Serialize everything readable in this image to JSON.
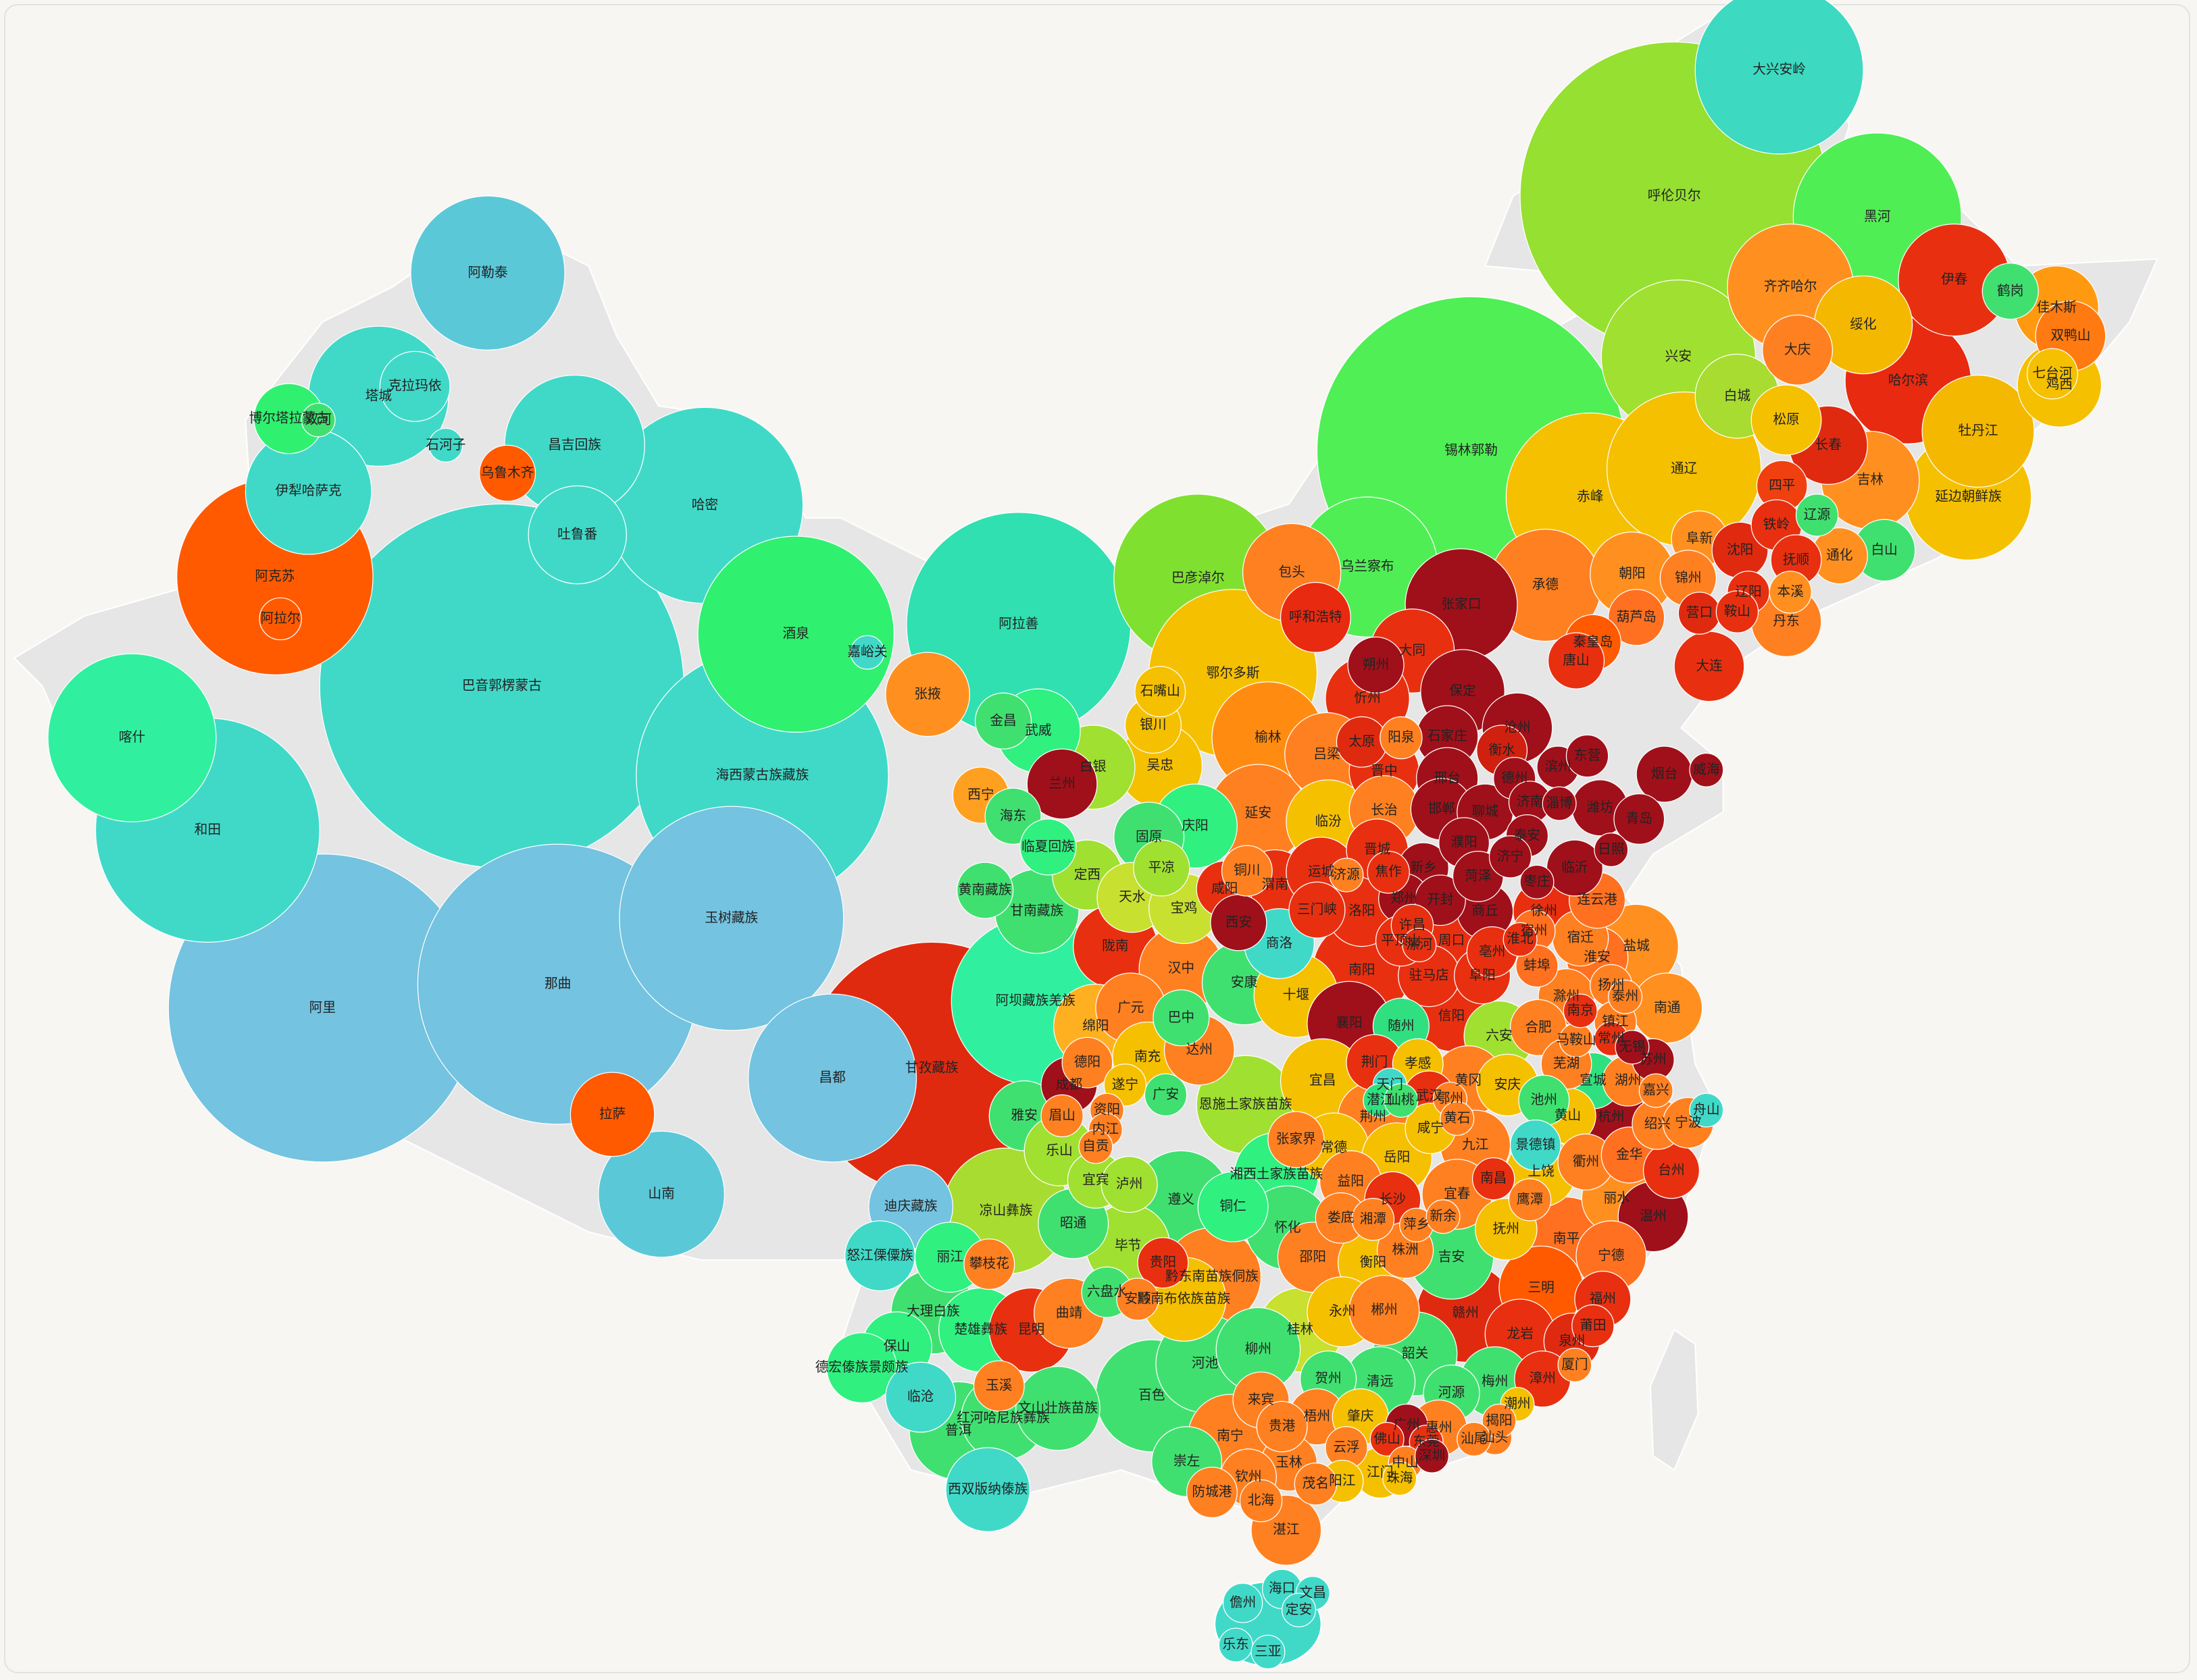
{
  "regions": [
    {
      "name": "大兴安岭",
      "color": "#3dd9c0"
    },
    {
      "name": "呼伦贝尔",
      "color": "#95e030"
    },
    {
      "name": "黑河",
      "color": "#50ee55"
    },
    {
      "name": "齐齐哈尔",
      "color": "#ff9020"
    },
    {
      "name": "伊春",
      "color": "#e83010"
    },
    {
      "name": "鹤岗",
      "color": "#40e070"
    },
    {
      "name": "佳木斯",
      "color": "#ff9a10"
    },
    {
      "name": "双鸭山",
      "color": "#ff7a10"
    },
    {
      "name": "绥化",
      "color": "#f5b800"
    },
    {
      "name": "大庆",
      "color": "#ff8020"
    },
    {
      "name": "兴安",
      "color": "#a0e030"
    },
    {
      "name": "哈尔滨",
      "color": "#e82a10"
    },
    {
      "name": "七台河",
      "color": "#f5c000"
    },
    {
      "name": "鸡西",
      "color": "#f5c000"
    },
    {
      "name": "白城",
      "color": "#a8dc30"
    },
    {
      "name": "牡丹江",
      "color": "#f5b800"
    },
    {
      "name": "松原",
      "color": "#f5c000"
    },
    {
      "name": "锡林郭勒",
      "color": "#50ef55"
    },
    {
      "name": "通辽",
      "color": "#f5c000"
    },
    {
      "name": "长春",
      "color": "#e02a10"
    },
    {
      "name": "四平",
      "color": "#f04010"
    },
    {
      "name": "吉林",
      "color": "#ff9020"
    },
    {
      "name": "延边朝鲜族",
      "color": "#f5c000"
    },
    {
      "name": "辽源",
      "color": "#40e070"
    },
    {
      "name": "赤峰",
      "color": "#f5c000"
    },
    {
      "name": "阜新",
      "color": "#ff9020"
    },
    {
      "name": "铁岭",
      "color": "#e83010"
    },
    {
      "name": "沈阳",
      "color": "#e02a10"
    },
    {
      "name": "抚顺",
      "color": "#e83010"
    },
    {
      "name": "通化",
      "color": "#ff9020"
    },
    {
      "name": "白山",
      "color": "#40e070"
    },
    {
      "name": "乌兰察布",
      "color": "#50ee55"
    },
    {
      "name": "包头",
      "color": "#ff8020"
    },
    {
      "name": "巴彦淖尔",
      "color": "#80e030"
    },
    {
      "name": "承德",
      "color": "#ff8020"
    },
    {
      "name": "朝阳",
      "color": "#ff9020"
    },
    {
      "name": "锦州",
      "color": "#ff8020"
    },
    {
      "name": "辽阳",
      "color": "#e83010"
    },
    {
      "name": "本溪",
      "color": "#ff9020"
    },
    {
      "name": "张家口",
      "color": "#a0101a"
    },
    {
      "name": "呼和浩特",
      "color": "#e82a10"
    },
    {
      "name": "营口",
      "color": "#e02a10"
    },
    {
      "name": "鞍山",
      "color": "#e83010"
    },
    {
      "name": "丹东",
      "color": "#ff8020"
    },
    {
      "name": "葫芦岛",
      "color": "#ff7020"
    },
    {
      "name": "大同",
      "color": "#e83010"
    },
    {
      "name": "秦皇岛",
      "color": "#ff5a00"
    },
    {
      "name": "唐山",
      "color": "#e83010"
    },
    {
      "name": "大连",
      "color": "#e83010"
    },
    {
      "name": "朔州",
      "color": "#a0101a"
    },
    {
      "name": "鄂尔多斯",
      "color": "#f5c000"
    },
    {
      "name": "石嘴山",
      "color": "#f5c000"
    },
    {
      "name": "保定",
      "color": "#a0101a"
    },
    {
      "name": "忻州",
      "color": "#e83010"
    },
    {
      "name": "银川",
      "color": "#f5c000"
    },
    {
      "name": "沧州",
      "color": "#a0101a"
    },
    {
      "name": "太原",
      "color": "#e02a10"
    },
    {
      "name": "阳泉",
      "color": "#ff8020"
    },
    {
      "name": "石家庄",
      "color": "#a0101a"
    },
    {
      "name": "衡水",
      "color": "#d02010"
    },
    {
      "name": "榆林",
      "color": "#ff8c10"
    },
    {
      "name": "吕梁",
      "color": "#ff8020"
    },
    {
      "name": "吴忠",
      "color": "#f5c000"
    },
    {
      "name": "兰州",
      "color": "#a0101a"
    },
    {
      "name": "白银",
      "color": "#a0e030"
    },
    {
      "name": "晋中",
      "color": "#e83010"
    },
    {
      "name": "邢台",
      "color": "#a0101a"
    },
    {
      "name": "西宁",
      "color": "#ffa020"
    },
    {
      "name": "海东",
      "color": "#40e070"
    },
    {
      "name": "延安",
      "color": "#ff8020"
    },
    {
      "name": "庆阳",
      "color": "#30f080"
    },
    {
      "name": "固原",
      "color": "#40e070"
    },
    {
      "name": "临汾",
      "color": "#f5c000"
    },
    {
      "name": "长治",
      "color": "#ff8020"
    },
    {
      "name": "邯郸",
      "color": "#a0101a"
    },
    {
      "name": "聊城",
      "color": "#a0101a"
    },
    {
      "name": "临夏回族",
      "color": "#30f080"
    },
    {
      "name": "晋城",
      "color": "#e83010"
    },
    {
      "name": "定西",
      "color": "#a0e030"
    },
    {
      "name": "平凉",
      "color": "#a0e030"
    },
    {
      "name": "铜川",
      "color": "#ff8020"
    },
    {
      "name": "渭南",
      "color": "#e83010"
    },
    {
      "name": "运城",
      "color": "#e83010"
    },
    {
      "name": "济源",
      "color": "#ff8020"
    },
    {
      "name": "焦作",
      "color": "#e83010"
    },
    {
      "name": "新乡",
      "color": "#a0101a"
    },
    {
      "name": "濮阳",
      "color": "#a0101a"
    },
    {
      "name": "甘南藏族",
      "color": "#40e070"
    },
    {
      "name": "天水",
      "color": "#c8e030"
    },
    {
      "name": "咸阳",
      "color": "#e83010"
    },
    {
      "name": "宝鸡",
      "color": "#c8e030"
    },
    {
      "name": "郑州",
      "color": "#a0101a"
    },
    {
      "name": "开封",
      "color": "#a0101a"
    },
    {
      "name": "菏泽",
      "color": "#a0101a"
    },
    {
      "name": "商丘",
      "color": "#a0101a"
    },
    {
      "name": "洛阳",
      "color": "#e83010"
    },
    {
      "name": "三门峡",
      "color": "#e83010"
    },
    {
      "name": "西安",
      "color": "#a0101a"
    },
    {
      "name": "许昌",
      "color": "#e83010"
    },
    {
      "name": "周口",
      "color": "#e83010"
    },
    {
      "name": "平顶山",
      "color": "#e83010"
    },
    {
      "name": "漯河",
      "color": "#e83010"
    },
    {
      "name": "亳州",
      "color": "#e83010"
    },
    {
      "name": "徐州",
      "color": "#e83010"
    },
    {
      "name": "宿迁",
      "color": "#ff8020"
    },
    {
      "name": "连云港",
      "color": "#ff7020"
    },
    {
      "name": "淮安",
      "color": "#ff7020"
    },
    {
      "name": "盐城",
      "color": "#ff9020"
    },
    {
      "name": "商洛",
      "color": "#40d9c8"
    },
    {
      "name": "陇南",
      "color": "#e83010"
    },
    {
      "name": "汉中",
      "color": "#ff8020"
    },
    {
      "name": "南阳",
      "color": "#e83010"
    },
    {
      "name": "驻马店",
      "color": "#e83010"
    },
    {
      "name": "淮北",
      "color": "#e83010"
    },
    {
      "name": "宿州",
      "color": "#ff7020"
    },
    {
      "name": "蚌埠",
      "color": "#ff7020"
    },
    {
      "name": "阜阳",
      "color": "#e83010"
    },
    {
      "name": "安康",
      "color": "#40e070"
    },
    {
      "name": "十堰",
      "color": "#f5c000"
    },
    {
      "name": "扬州",
      "color": "#ff8020"
    },
    {
      "name": "南通",
      "color": "#ff9020"
    },
    {
      "name": "滁州",
      "color": "#ff8020"
    },
    {
      "name": "阿坝藏族羌族",
      "color": "#30f0a0"
    },
    {
      "name": "广元",
      "color": "#ff8020"
    },
    {
      "name": "巴中",
      "color": "#40e070"
    },
    {
      "name": "信阳",
      "color": "#e83010"
    },
    {
      "name": "襄阳",
      "color": "#a0101a"
    },
    {
      "name": "随州",
      "color": "#30e080"
    },
    {
      "name": "六安",
      "color": "#a0e030"
    },
    {
      "name": "合肥",
      "color": "#ff8020"
    },
    {
      "name": "镇江",
      "color": "#ff8020"
    },
    {
      "name": "马鞍山",
      "color": "#ff8020"
    },
    {
      "name": "绵阳",
      "color": "#ffb020"
    },
    {
      "name": "南充",
      "color": "#f5c000"
    },
    {
      "name": "达州",
      "color": "#ff8020"
    },
    {
      "name": "甘孜藏族",
      "color": "#e02a10"
    },
    {
      "name": "昌都",
      "color": "#74c3e0"
    },
    {
      "name": "德阳",
      "color": "#ff8020"
    },
    {
      "name": "荆门",
      "color": "#e83010"
    },
    {
      "name": "孝感",
      "color": "#f5c000"
    },
    {
      "name": "黄冈",
      "color": "#ff8020"
    },
    {
      "name": "安庆",
      "color": "#f5c000"
    },
    {
      "name": "芜湖",
      "color": "#ff8020"
    },
    {
      "name": "宣城",
      "color": "#30e080"
    },
    {
      "name": "湖州",
      "color": "#ff8020"
    },
    {
      "name": "成都",
      "color": "#a0101a"
    },
    {
      "name": "遂宁",
      "color": "#f5c000"
    },
    {
      "name": "广安",
      "color": "#40e070"
    },
    {
      "name": "天门",
      "color": "#40d9c8"
    },
    {
      "name": "潜江",
      "color": "#30e080"
    },
    {
      "name": "仙桃",
      "color": "#40e070"
    },
    {
      "name": "宜昌",
      "color": "#f5c000"
    },
    {
      "name": "恩施土家族苗族",
      "color": "#a0e030"
    },
    {
      "name": "武汉",
      "color": "#e83010"
    },
    {
      "name": "鄂州",
      "color": "#ff8020"
    },
    {
      "name": "池州",
      "color": "#40e070"
    },
    {
      "name": "黄山",
      "color": "#f5c000"
    },
    {
      "name": "杭州",
      "color": "#a0101a"
    },
    {
      "name": "绍兴",
      "color": "#ff8020"
    },
    {
      "name": "宁波",
      "color": "#ff8020"
    },
    {
      "name": "舟山",
      "color": "#40d9c8"
    },
    {
      "name": "雅安",
      "color": "#40e070"
    },
    {
      "name": "眉山",
      "color": "#ff8020"
    },
    {
      "name": "资阳",
      "color": "#ff8020"
    },
    {
      "name": "内江",
      "color": "#ff8020"
    },
    {
      "name": "荆州",
      "color": "#ff8020"
    },
    {
      "name": "咸宁",
      "color": "#f5c000"
    },
    {
      "name": "黄石",
      "color": "#ff8020"
    },
    {
      "name": "景德镇",
      "color": "#40d9c8"
    },
    {
      "name": "衢州",
      "color": "#ff8020"
    },
    {
      "name": "金华",
      "color": "#ff7020"
    },
    {
      "name": "台州",
      "color": "#e83010"
    },
    {
      "name": "张家界",
      "color": "#ff8020"
    },
    {
      "name": "常德",
      "color": "#f5c000"
    },
    {
      "name": "乐山",
      "color": "#a0e030"
    },
    {
      "name": "自贡",
      "color": "#ff8020"
    },
    {
      "name": "岳阳",
      "color": "#f5c000"
    },
    {
      "name": "九江",
      "color": "#ff8020"
    },
    {
      "name": "湘西土家族苗族",
      "color": "#30f080"
    },
    {
      "name": "上饶",
      "color": "#f5c000"
    },
    {
      "name": "丽水",
      "color": "#ff9020"
    },
    {
      "name": "宜宾",
      "color": "#a0e030"
    },
    {
      "name": "泸州",
      "color": "#a0e030"
    },
    {
      "name": "益阳",
      "color": "#ff8020"
    },
    {
      "name": "宜春",
      "color": "#ff8020"
    },
    {
      "name": "南昌",
      "color": "#e83010"
    },
    {
      "name": "鹰潭",
      "color": "#ff8020"
    },
    {
      "name": "温州",
      "color": "#a0101a"
    },
    {
      "name": "长沙",
      "color": "#e83010"
    },
    {
      "name": "凉山彝族",
      "color": "#a8dc30"
    },
    {
      "name": "遵义",
      "color": "#40e070"
    },
    {
      "name": "铜仁",
      "color": "#30f080"
    },
    {
      "name": "迪庆藏族",
      "color": "#74c3e0"
    },
    {
      "name": "昭通",
      "color": "#40e070"
    },
    {
      "name": "怀化",
      "color": "#40e070"
    },
    {
      "name": "娄底",
      "color": "#ff8020"
    },
    {
      "name": "湘潭",
      "color": "#ff8020"
    },
    {
      "name": "萍乡",
      "color": "#ff8020"
    },
    {
      "name": "新余",
      "color": "#ff8020"
    },
    {
      "name": "抚州",
      "color": "#f5c000"
    },
    {
      "name": "南平",
      "color": "#ff7020"
    },
    {
      "name": "宁德",
      "color": "#ff7020"
    },
    {
      "name": "株洲",
      "color": "#ff8020"
    },
    {
      "name": "毕节",
      "color": "#a0e030"
    },
    {
      "name": "怒江傈僳族",
      "color": "#40d9c8"
    },
    {
      "name": "丽江",
      "color": "#30f080"
    },
    {
      "name": "攀枝花",
      "color": "#ff8020"
    },
    {
      "name": "邵阳",
      "color": "#ff8020"
    },
    {
      "name": "吉安",
      "color": "#40e070"
    },
    {
      "name": "衡阳",
      "color": "#f5c000"
    },
    {
      "name": "贵阳",
      "color": "#e83010"
    },
    {
      "name": "黔东南苗族侗族",
      "color": "#ff8020"
    },
    {
      "name": "三明",
      "color": "#ff5a00"
    },
    {
      "name": "六盘水",
      "color": "#40e070"
    },
    {
      "name": "安顺",
      "color": "#ff8020"
    },
    {
      "name": "黔南布依族苗族",
      "color": "#f5c000"
    },
    {
      "name": "大理白族",
      "color": "#40e070"
    },
    {
      "name": "楚雄彝族",
      "color": "#30f080"
    },
    {
      "name": "昆明",
      "color": "#e83010"
    },
    {
      "name": "曲靖",
      "color": "#ff8020"
    },
    {
      "name": "永州",
      "color": "#f5c000"
    },
    {
      "name": "郴州",
      "color": "#ff8020"
    },
    {
      "name": "赣州",
      "color": "#e02a10"
    },
    {
      "name": "福州",
      "color": "#e83010"
    },
    {
      "name": "桂林",
      "color": "#c8e030"
    },
    {
      "name": "保山",
      "color": "#30f080"
    },
    {
      "name": "龙岩",
      "color": "#e83010"
    },
    {
      "name": "莆田",
      "color": "#e83010"
    },
    {
      "name": "泉州",
      "color": "#e02a10"
    },
    {
      "name": "德宏傣族景颇族",
      "color": "#30f080"
    },
    {
      "name": "柳州",
      "color": "#40e070"
    },
    {
      "name": "河池",
      "color": "#40e070"
    },
    {
      "name": "韶关",
      "color": "#40e070"
    },
    {
      "name": "漳州",
      "color": "#e83010"
    },
    {
      "name": "厦门",
      "color": "#ff8020"
    },
    {
      "name": "贺州",
      "color": "#40e070"
    },
    {
      "name": "清远",
      "color": "#40e070"
    },
    {
      "name": "梅州",
      "color": "#40e070"
    },
    {
      "name": "临沧",
      "color": "#40d9c8"
    },
    {
      "name": "玉溪",
      "color": "#ff8020"
    },
    {
      "name": "百色",
      "color": "#40e070"
    },
    {
      "name": "河源",
      "color": "#40e070"
    },
    {
      "name": "红河哈尼族彝族",
      "color": "#40e070"
    },
    {
      "name": "文山壮族苗族",
      "color": "#40e070"
    },
    {
      "name": "来宾",
      "color": "#ff8020"
    },
    {
      "name": "梧州",
      "color": "#ff8020"
    },
    {
      "name": "肇庆",
      "color": "#f5c000"
    },
    {
      "name": "潮州",
      "color": "#f5c000"
    },
    {
      "name": "普洱",
      "color": "#40e070"
    },
    {
      "name": "贵港",
      "color": "#ff8020"
    },
    {
      "name": "惠州",
      "color": "#ff8020"
    },
    {
      "name": "汕头",
      "color": "#ff8020"
    },
    {
      "name": "揭阳",
      "color": "#ff8020"
    },
    {
      "name": "汕尾",
      "color": "#ff8020"
    },
    {
      "name": "南宁",
      "color": "#ff8020"
    },
    {
      "name": "云浮",
      "color": "#ff8020"
    },
    {
      "name": "佛山",
      "color": "#e83010"
    },
    {
      "name": "广州",
      "color": "#a0101a"
    },
    {
      "name": "东莞",
      "color": "#e83010"
    },
    {
      "name": "崇左",
      "color": "#40e070"
    },
    {
      "name": "玉林",
      "color": "#ff8020"
    },
    {
      "name": "江门",
      "color": "#f5c000"
    },
    {
      "name": "中山",
      "color": "#ff8020"
    },
    {
      "name": "深圳",
      "color": "#a0101a"
    },
    {
      "name": "阳江",
      "color": "#f5c000"
    },
    {
      "name": "珠海",
      "color": "#f5c000"
    },
    {
      "name": "西双版纳傣族",
      "color": "#40d9c8"
    },
    {
      "name": "钦州",
      "color": "#ff8020"
    },
    {
      "name": "防城港",
      "color": "#ff8020"
    },
    {
      "name": "北海",
      "color": "#ff8020"
    },
    {
      "name": "茂名",
      "color": "#ff8020"
    },
    {
      "name": "湛江",
      "color": "#ff8020"
    },
    {
      "name": "塔城",
      "color": "#40d9c8"
    },
    {
      "name": "克拉玛依",
      "color": "#40d9c8"
    },
    {
      "name": "阿勒泰",
      "color": "#5bc8d8"
    },
    {
      "name": "博尔塔拉蒙古",
      "color": "#30f070"
    },
    {
      "name": "双河",
      "color": "#40e070"
    },
    {
      "name": "石河子",
      "color": "#40d9c8"
    },
    {
      "name": "昌吉回族",
      "color": "#40d9c8"
    },
    {
      "name": "乌鲁木齐",
      "color": "#ff5a00"
    },
    {
      "name": "伊犁哈萨克",
      "color": "#40d9c8"
    },
    {
      "name": "哈密",
      "color": "#40d9c8"
    },
    {
      "name": "吐鲁番",
      "color": "#40d9c8"
    },
    {
      "name": "阿克苏",
      "color": "#ff5a00"
    },
    {
      "name": "阿拉尔",
      "color": "#ff5a00"
    },
    {
      "name": "阿拉善",
      "color": "#30e0b0"
    },
    {
      "name": "酒泉",
      "color": "#30f070"
    },
    {
      "name": "嘉峪关",
      "color": "#40d9c8"
    },
    {
      "name": "张掖",
      "color": "#ff9020"
    },
    {
      "name": "金昌",
      "color": "#40e070"
    },
    {
      "name": "武威",
      "color": "#30f080"
    },
    {
      "name": "喀什",
      "color": "#30f0a0"
    },
    {
      "name": "巴音郭楞蒙古",
      "color": "#40d9c8"
    },
    {
      "name": "海西蒙古族藏族",
      "color": "#40d9c8"
    },
    {
      "name": "和田",
      "color": "#40d9c8"
    },
    {
      "name": "黄南藏族",
      "color": "#40e070"
    },
    {
      "name": "玉树藏族",
      "color": "#74c3e0"
    },
    {
      "name": "阿里",
      "color": "#74c3e0"
    },
    {
      "name": "那曲",
      "color": "#74c3e0"
    },
    {
      "name": "拉萨",
      "color": "#ff5a00"
    },
    {
      "name": "山南",
      "color": "#5bc8d8"
    },
    {
      "name": "德州",
      "color": "#a0101a"
    },
    {
      "name": "滨州",
      "color": "#a0101a"
    },
    {
      "name": "东营",
      "color": "#a0101a"
    },
    {
      "name": "烟台",
      "color": "#a0101a"
    },
    {
      "name": "威海",
      "color": "#a0101a"
    },
    {
      "name": "潍坊",
      "color": "#a0101a"
    },
    {
      "name": "青岛",
      "color": "#a0101a"
    },
    {
      "name": "淄博",
      "color": "#a0101a"
    },
    {
      "name": "济南",
      "color": "#a0101a"
    },
    {
      "name": "泰安",
      "color": "#a0101a"
    },
    {
      "name": "日照",
      "color": "#a0101a"
    },
    {
      "name": "临沂",
      "color": "#a0101a"
    },
    {
      "name": "枣庄",
      "color": "#a0101a"
    },
    {
      "name": "济宁",
      "color": "#a0101a"
    },
    {
      "name": "泰州",
      "color": "#ff8020"
    },
    {
      "name": "南京",
      "color": "#e83010"
    },
    {
      "name": "常州",
      "color": "#e83010"
    },
    {
      "name": "无锡",
      "color": "#a0101a"
    },
    {
      "name": "苏州",
      "color": "#a0101a"
    },
    {
      "name": "嘉兴",
      "color": "#ff8020"
    },
    {
      "name": "海口",
      "color": "#40d9c8"
    },
    {
      "name": "儋州",
      "color": "#40d9c8"
    },
    {
      "name": "文昌",
      "color": "#40d9c8"
    },
    {
      "name": "定安",
      "color": "#40d9c8"
    },
    {
      "name": "乐东",
      "color": "#40d9c8"
    },
    {
      "name": "三亚",
      "color": "#40d9c8"
    }
  ]
}
